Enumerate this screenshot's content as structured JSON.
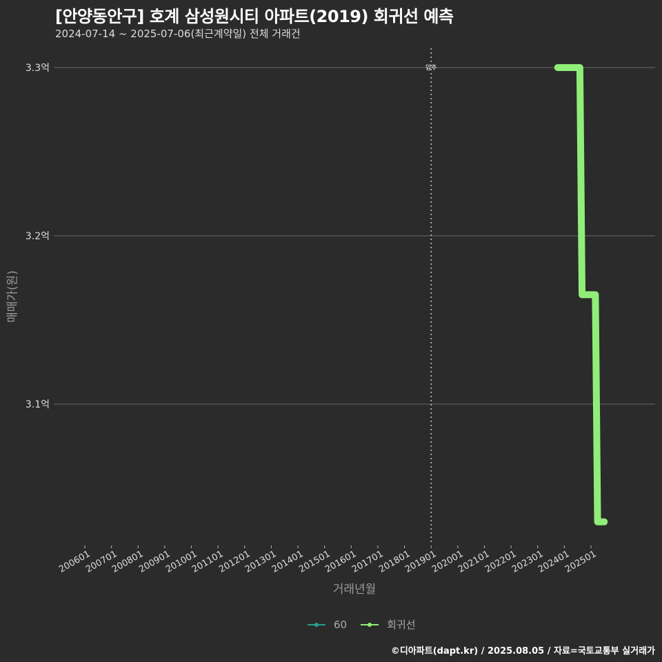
{
  "header": {
    "title": "[안양동안구] 호계 삼성원시티 아파트(2019) 회귀선 예측",
    "subtitle": "2024-07-14 ~ 2025-07-06(최근계약일) 전체 거래건"
  },
  "footer": {
    "credit": "©디아파트(dapt.kr) / 2025.08.05 / 자료=국토교통부 실거래가"
  },
  "colors": {
    "background": "#2b2b2b",
    "grid": "#6a6a6a",
    "series_60": "#2a9d8f",
    "regression": "#90ee78"
  },
  "chart_data": {
    "type": "line",
    "title": "[안양동안구] 호계 삼성원시티 아파트(2019) 회귀선 예측",
    "subtitle": "2024-07-14 ~ 2025-07-06(최근계약일) 전체 거래건",
    "xlabel": "거래년월",
    "ylabel": "매매가(원)",
    "x_ticks": [
      "200601",
      "200701",
      "200801",
      "200901",
      "201001",
      "201101",
      "201201",
      "201301",
      "201401",
      "201501",
      "201601",
      "201701",
      "201801",
      "201901",
      "202001",
      "202101",
      "202201",
      "202301",
      "202401",
      "202501"
    ],
    "y_ticks": [
      "3.1억",
      "3.2억",
      "3.3억"
    ],
    "y_tick_values": [
      3.1,
      3.2,
      3.3
    ],
    "ylim": [
      3.02,
      3.31
    ],
    "grid": "horizontal",
    "legend_position": "bottom",
    "legend": [
      "60",
      "회귀선"
    ],
    "annotations": [
      {
        "x": "201901",
        "label": "입주",
        "style": "dotted vertical line"
      }
    ],
    "series": [
      {
        "name": "60",
        "x": [],
        "values": []
      },
      {
        "name": "회귀선",
        "x": [
          "2023-10",
          "2024-08",
          "2024-09",
          "2025-03",
          "2025-04",
          "2025-07"
        ],
        "values": [
          3.3,
          3.3,
          3.165,
          3.165,
          3.03,
          3.03
        ]
      }
    ]
  }
}
